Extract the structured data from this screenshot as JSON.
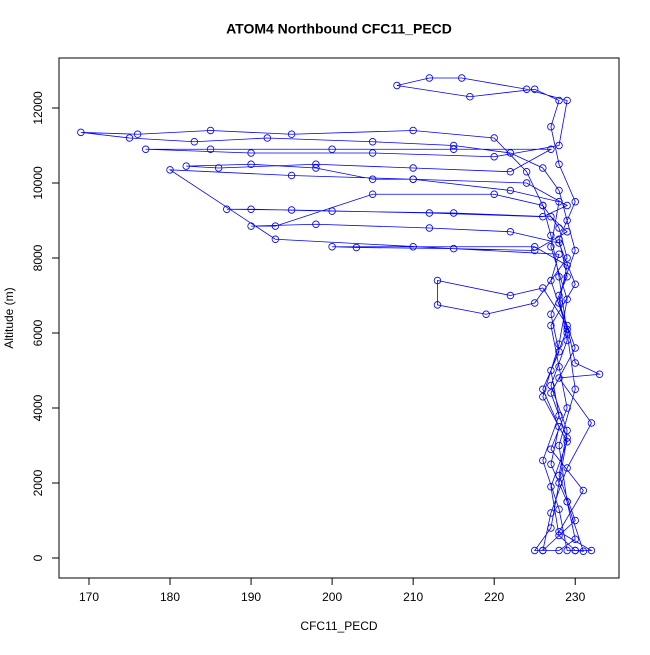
{
  "chart_data": {
    "type": "line",
    "title": "ATOM4 Northbound CFC11_PECD",
    "x_label": "CFC11_PECD",
    "y_label": "Altitude (m)",
    "color": "blue",
    "markers": true,
    "xlim": [
      166.3,
      235.4
    ],
    "ylim": [
      -533,
      13333
    ],
    "xticks": [
      170,
      180,
      190,
      200,
      210,
      220,
      230
    ],
    "yticks": [
      0,
      2000,
      4000,
      6000,
      8000,
      10000,
      12000
    ],
    "x": [
      230,
      231,
      229,
      228,
      230,
      229,
      228,
      227,
      226,
      224,
      220,
      210,
      195,
      185,
      176,
      169,
      175,
      183,
      192,
      205,
      215,
      222,
      226,
      228,
      229,
      230,
      228,
      229,
      227,
      229,
      228,
      230,
      226,
      225,
      227,
      228,
      229,
      227,
      230,
      228,
      229,
      225,
      210,
      200,
      203,
      215,
      225,
      229,
      227,
      215,
      200,
      190,
      187,
      195,
      212,
      226,
      229,
      224,
      210,
      205,
      198,
      190,
      182,
      186,
      198,
      210,
      222,
      227,
      215,
      200,
      185,
      177,
      190,
      205,
      220,
      228,
      229,
      224,
      216,
      212,
      208,
      217,
      225,
      228,
      227,
      228,
      230,
      228,
      229,
      227,
      228,
      226,
      228,
      227,
      229,
      230,
      228,
      226,
      227,
      229,
      232,
      228,
      233,
      230,
      229,
      226,
      222,
      213,
      213,
      219,
      225,
      229,
      228,
      226,
      220,
      205,
      193,
      190,
      198,
      212,
      222,
      228,
      230,
      227,
      228,
      229,
      227,
      231,
      228,
      232,
      229,
      228,
      226,
      228,
      227,
      229,
      227,
      228,
      193,
      180,
      195,
      210,
      222,
      228,
      227,
      229,
      228,
      226,
      229,
      227,
      228,
      230
    ],
    "values": [
      200,
      180,
      1500,
      3000,
      4500,
      6000,
      7500,
      8600,
      9400,
      10300,
      11200,
      11400,
      11300,
      11400,
      11300,
      11350,
      11200,
      11100,
      11200,
      11100,
      11000,
      10800,
      10400,
      9800,
      9000,
      8200,
      7000,
      5800,
      4600,
      3400,
      2200,
      1000,
      200,
      200,
      800,
      2000,
      3200,
      4400,
      5600,
      6800,
      7800,
      8300,
      8300,
      8300,
      8280,
      8250,
      8200,
      8700,
      9100,
      9200,
      9250,
      9300,
      9300,
      9280,
      9200,
      9100,
      9400,
      10000,
      10100,
      10100,
      10400,
      10500,
      10450,
      10400,
      10500,
      10400,
      10300,
      10900,
      10900,
      10900,
      10900,
      10900,
      10800,
      10800,
      10700,
      11000,
      12200,
      12500,
      12800,
      12800,
      12600,
      12300,
      12500,
      12200,
      11500,
      10500,
      9500,
      8500,
      7500,
      6500,
      5500,
      4500,
      3500,
      2500,
      1500,
      500,
      200,
      200,
      1200,
      2400,
      3600,
      4800,
      4900,
      5200,
      6200,
      7200,
      7000,
      7400,
      6750,
      6500,
      6800,
      8000,
      8800,
      9400,
      9700,
      9700,
      8850,
      8850,
      8900,
      8800,
      8700,
      8400,
      7300,
      6200,
      5100,
      4000,
      2900,
      1800,
      700,
      200,
      200,
      1300,
      2600,
      3800,
      5000,
      6100,
      7400,
      8100,
      8500,
      10350,
      10200,
      10100,
      9800,
      9500,
      8300,
      6900,
      5700,
      4300,
      3100,
      1900,
      600,
      200
    ]
  }
}
